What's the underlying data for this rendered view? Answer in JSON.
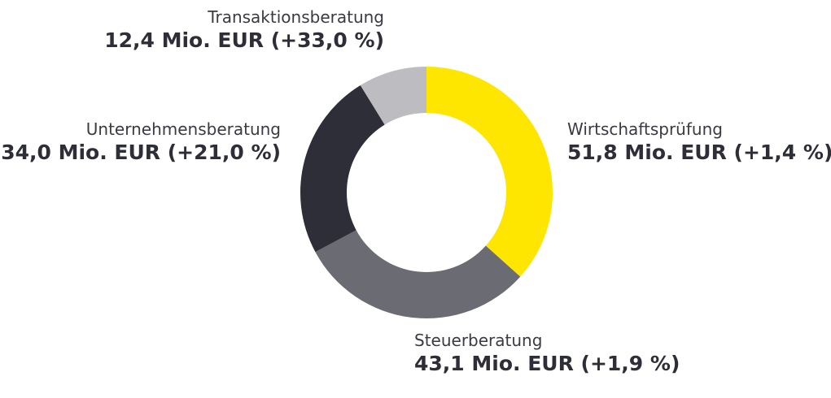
{
  "chart_data": {
    "type": "donut",
    "categories": [
      "Wirtschaftsprüfung",
      "Steuerberatung",
      "Unternehmensberatung",
      "Transaktionsberatung"
    ],
    "values": [
      51.8,
      43.1,
      34.0,
      12.4
    ],
    "value_labels": [
      "51,8 Mio. EUR (+1,4 %)",
      "43,1 Mio. EUR (+1,9 %)",
      "34,0 Mio. EUR (+21,0 %)",
      "12,4 Mio. EUR (+33,0 %)"
    ],
    "colors": [
      "#ffe600",
      "#6b6b74",
      "#2e2e38",
      "#bcbcc1"
    ],
    "start_angle_deg": 0,
    "direction": "clockwise"
  }
}
